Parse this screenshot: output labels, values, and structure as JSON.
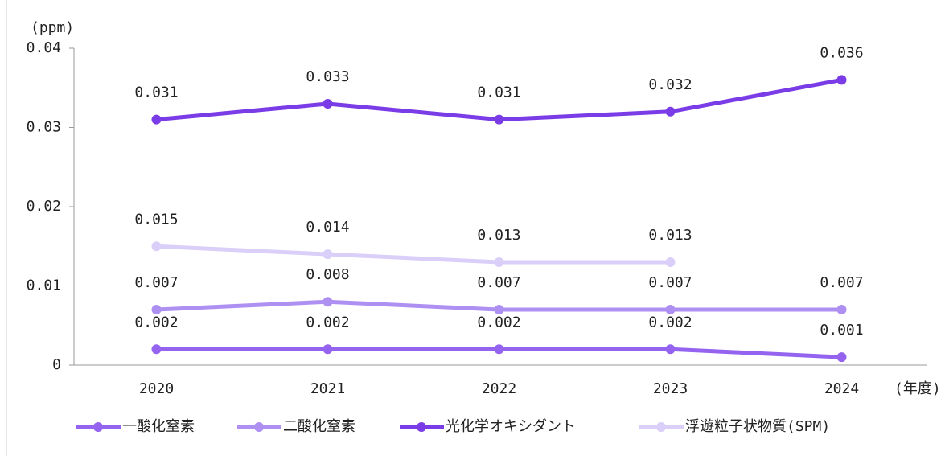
{
  "chart_data": {
    "type": "line",
    "y_label": "(ppm)",
    "x_label": "(年度)",
    "categories": [
      "2020",
      "2021",
      "2022",
      "2023",
      "2024"
    ],
    "series": [
      {
        "name": "一酸化窒素",
        "color": "#9463f0",
        "values": [
          0.002,
          0.002,
          0.002,
          0.002,
          0.001
        ]
      },
      {
        "name": "二酸化窒素",
        "color": "#ae8ff2",
        "values": [
          0.007,
          0.008,
          0.007,
          0.007,
          0.007
        ]
      },
      {
        "name": "光化学オキシダント",
        "color": "#7a3ce6",
        "values": [
          0.031,
          0.033,
          0.031,
          0.032,
          0.036
        ]
      },
      {
        "name": "浮遊粒子状物質(SPM)",
        "color": "#dacff8",
        "values": [
          0.015,
          0.014,
          0.013,
          0.013,
          null
        ]
      }
    ],
    "ylim": [
      0,
      0.04
    ],
    "yticks": [
      0,
      0.01,
      0.02,
      0.03,
      0.04
    ],
    "grid": false
  }
}
